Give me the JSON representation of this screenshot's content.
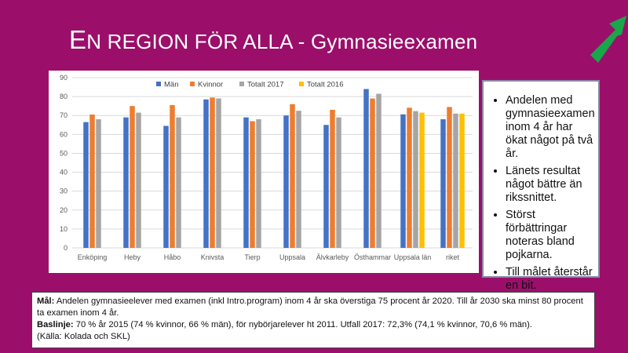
{
  "slide": {
    "title_first_letter": "E",
    "title_rest": "N REGION FÖR ALLA - Gymnasieexamen",
    "bullets": [
      "Andelen med gymnasieexamen inom 4 år har ökat något på två år.",
      "Länets resultat något bättre än rikssnittet.",
      "Störst förbättringar noteras bland pojkarna.",
      "Till målet återstår en bit."
    ],
    "goal_label": "Mål:",
    "goal_text": "Andelen gymnasieelever med examen (inkl Intro.program) inom 4 år ska överstiga 75 procent år 2020. Till år 2030 ska minst 80 procent ta examen inom 4 år.",
    "baseline_label": "Baslinje:",
    "baseline_text": "70 % år 2015 (74 % kvinnor, 66 % män), för nybörjarelever ht 2011. Utfall 2017: 72,3% (74,1 % kvinnor, 70,6 % män).",
    "source_text": "(Källa: Kolada och SKL)",
    "arrow_color": "#1aa64a"
  },
  "chart_data": {
    "type": "bar",
    "categories": [
      "Enköping",
      "Heby",
      "Håbo",
      "Knivsta",
      "Tierp",
      "Uppsala",
      "Älvkarleby",
      "Östhammar",
      "Uppsala län",
      "riket"
    ],
    "ylim": [
      0,
      90
    ],
    "yticks": [
      0,
      10,
      20,
      30,
      40,
      50,
      60,
      70,
      80,
      90
    ],
    "grid": true,
    "legend_position": "top",
    "series": [
      {
        "name": "Män",
        "color": "#4472c4",
        "values": [
          66.5,
          69,
          64.5,
          78.5,
          69,
          70,
          65,
          84,
          70.6,
          68
        ]
      },
      {
        "name": "Kvinnor",
        "color": "#ed7d31",
        "values": [
          70.5,
          75,
          75.5,
          79.5,
          67,
          76,
          73,
          79,
          74.1,
          74.5
        ]
      },
      {
        "name": "Totalt 2017",
        "color": "#a5a5a5",
        "values": [
          68,
          71.5,
          69,
          79,
          68,
          72.5,
          69,
          81.5,
          72.3,
          71
        ]
      },
      {
        "name": "Totalt 2016",
        "color": "#ffc000",
        "values": [
          null,
          null,
          null,
          null,
          null,
          null,
          null,
          null,
          71.5,
          71
        ]
      }
    ]
  }
}
